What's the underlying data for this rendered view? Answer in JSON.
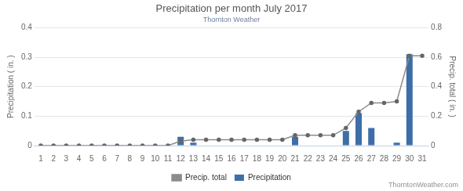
{
  "chart_data": {
    "type": "bar",
    "title": "Precipitation per month July 2017",
    "subtitle": "Thornton Weather",
    "y_label": "Precipitation ( in. )",
    "y2_label": "Precip. total ( in. )",
    "categories": [
      1,
      2,
      3,
      4,
      5,
      6,
      7,
      8,
      9,
      10,
      11,
      12,
      13,
      14,
      15,
      16,
      17,
      18,
      19,
      20,
      21,
      22,
      23,
      24,
      25,
      26,
      27,
      28,
      29,
      30,
      31
    ],
    "series": [
      {
        "name": "Precipitation",
        "type": "bar",
        "color": "#3d6ea8",
        "values": [
          0,
          0,
          0,
          0,
          0,
          0,
          0,
          0,
          0,
          0,
          0,
          0.03,
          0.01,
          0,
          0,
          0,
          0,
          0,
          0,
          0,
          0.03,
          0,
          0,
          0,
          0.05,
          0.11,
          0.06,
          0,
          0.01,
          0.31,
          0
        ]
      },
      {
        "name": "Precip. total",
        "type": "line",
        "color": "#8c8c8c",
        "marker": "circle",
        "axis": "y2",
        "values": [
          0,
          0,
          0,
          0,
          0,
          0,
          0,
          0,
          0,
          0,
          0,
          0.03,
          0.04,
          0.04,
          0.04,
          0.04,
          0.04,
          0.04,
          0.04,
          0.04,
          0.07,
          0.07,
          0.07,
          0.07,
          0.12,
          0.23,
          0.29,
          0.29,
          0.3,
          0.61,
          0.61
        ]
      }
    ],
    "ylim": [
      0,
      0.4
    ],
    "yticks": [
      0,
      0.1,
      0.2,
      0.3,
      0.4
    ],
    "y2lim": [
      0,
      0.8
    ],
    "y2ticks": [
      0,
      0.2,
      0.4,
      0.6,
      0.8
    ],
    "grid": true,
    "legend": "bottom",
    "annotations": [
      "ThorntonWeather.com"
    ]
  }
}
